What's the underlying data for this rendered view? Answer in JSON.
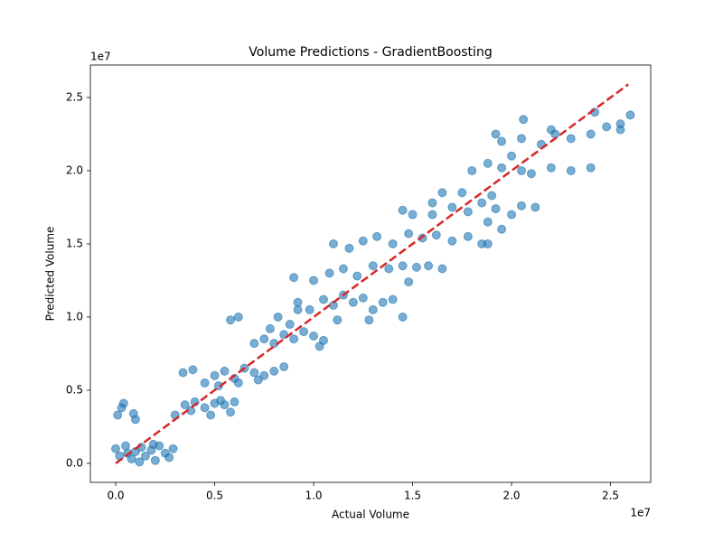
{
  "chart_data": {
    "type": "scatter",
    "title": "Volume Predictions - GradientBoosting",
    "x_label": "Actual Volume",
    "y_label": "Predicted Volume",
    "x_offset_label": "1e7",
    "y_offset_label": "1e7",
    "color": "#1f77b4",
    "xlim": [
      -0.128,
      2.703
    ],
    "ylim": [
      -0.13,
      2.722
    ],
    "xticks": [
      {
        "value": 0,
        "label": "0.0"
      },
      0.5,
      {
        "value": 1,
        "label": "1.0"
      },
      1.5,
      {
        "value": 2,
        "label": "2.0"
      },
      2.5
    ],
    "yticks": [
      {
        "value": 0,
        "label": "0.0"
      },
      0.5,
      {
        "value": 1,
        "label": "1.0"
      },
      1.5,
      {
        "value": 2,
        "label": "2.0"
      },
      2.5
    ],
    "grid": false,
    "x": [
      0.0,
      0.02,
      0.05,
      0.08,
      0.1,
      0.13,
      0.15,
      0.18,
      0.2,
      0.22,
      0.25,
      0.27,
      0.29,
      0.12,
      0.06,
      0.19,
      0.01,
      0.03,
      0.04,
      0.1,
      0.09,
      0.3,
      0.35,
      0.4,
      0.45,
      0.5,
      0.55,
      0.58,
      0.38,
      0.48,
      0.53,
      0.6,
      0.34,
      0.39,
      0.45,
      0.5,
      0.55,
      0.6,
      0.65,
      0.7,
      0.75,
      0.8,
      0.85,
      0.62,
      0.72,
      0.52,
      0.58,
      0.62,
      0.7,
      0.75,
      0.8,
      0.85,
      0.9,
      0.95,
      1.0,
      1.05,
      0.78,
      0.88,
      1.03,
      0.82,
      0.92,
      0.92,
      0.98,
      1.05,
      1.1,
      1.15,
      1.2,
      1.25,
      1.3,
      1.35,
      1.4,
      1.12,
      1.28,
      1.45,
      0.9,
      1.0,
      1.08,
      1.15,
      1.22,
      1.3,
      1.38,
      1.45,
      1.52,
      1.58,
      1.65,
      1.48,
      1.1,
      1.18,
      1.25,
      1.32,
      1.4,
      1.48,
      1.55,
      1.62,
      1.7,
      1.78,
      1.85,
      1.45,
      1.5,
      1.6,
      1.65,
      1.6,
      1.7,
      1.78,
      1.85,
      1.92,
      2.0,
      2.05,
      1.88,
      1.95,
      1.88,
      1.75,
      1.9,
      1.8,
      1.88,
      1.95,
      2.0,
      2.05,
      2.1,
      2.2,
      2.3,
      2.4,
      1.95,
      2.05,
      2.15,
      2.22,
      2.3,
      2.4,
      2.48,
      2.55,
      2.6,
      2.55,
      2.42,
      2.06,
      2.2,
      1.92,
      2.12
    ],
    "values": [
      0.1,
      0.05,
      0.12,
      0.03,
      0.08,
      0.11,
      0.05,
      0.09,
      0.02,
      0.12,
      0.07,
      0.04,
      0.1,
      0.01,
      0.07,
      0.13,
      0.33,
      0.38,
      0.41,
      0.3,
      0.34,
      0.33,
      0.4,
      0.42,
      0.38,
      0.41,
      0.4,
      0.35,
      0.36,
      0.33,
      0.43,
      0.42,
      0.62,
      0.64,
      0.55,
      0.6,
      0.63,
      0.58,
      0.65,
      0.62,
      0.6,
      0.63,
      0.66,
      0.55,
      0.57,
      0.53,
      0.98,
      1.0,
      0.82,
      0.85,
      0.82,
      0.88,
      0.85,
      0.9,
      0.87,
      0.84,
      0.92,
      0.95,
      0.8,
      1.0,
      1.05,
      1.1,
      1.05,
      1.12,
      1.08,
      1.15,
      1.1,
      1.13,
      1.05,
      1.1,
      1.12,
      0.98,
      0.98,
      1.0,
      1.27,
      1.25,
      1.3,
      1.33,
      1.28,
      1.35,
      1.33,
      1.35,
      1.34,
      1.35,
      1.33,
      1.24,
      1.5,
      1.47,
      1.52,
      1.55,
      1.5,
      1.57,
      1.54,
      1.56,
      1.52,
      1.55,
      1.5,
      1.73,
      1.7,
      1.78,
      1.85,
      1.7,
      1.75,
      1.72,
      1.78,
      1.74,
      1.7,
      1.76,
      1.65,
      1.6,
      1.5,
      1.85,
      1.83,
      2.0,
      2.05,
      2.02,
      2.1,
      2.0,
      1.98,
      2.02,
      2.0,
      2.02,
      2.2,
      2.22,
      2.18,
      2.25,
      2.22,
      2.25,
      2.3,
      2.32,
      2.38,
      2.28,
      2.4,
      2.35,
      2.28,
      2.25,
      1.75
    ],
    "reference_line": {
      "x": [
        0,
        2.59
      ],
      "values": [
        0,
        2.59
      ],
      "color": "#d62728"
    }
  }
}
